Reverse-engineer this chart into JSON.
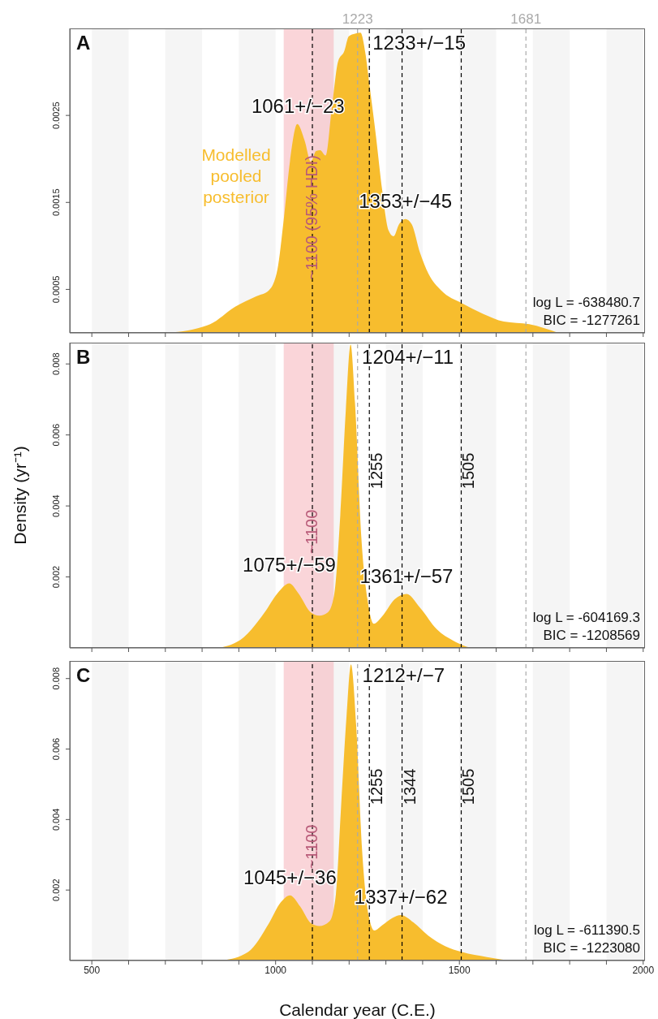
{
  "chart_data": [
    {
      "type": "area",
      "title": "A",
      "xlim": [
        440,
        2005
      ],
      "ylim": [
        0,
        0.0035
      ],
      "yticks": [
        0.0005,
        0.0015,
        0.0025
      ],
      "tick_labels": "y",
      "xticks": [
        500,
        {
          "value": 600,
          "label": null
        },
        {
          "value": 700,
          "label": null
        },
        {
          "value": 800,
          "label": null
        },
        {
          "value": 900,
          "label": null
        },
        1000,
        {
          "value": 1100,
          "label": null
        },
        {
          "value": 1200,
          "label": null
        },
        {
          "value": 1300,
          "label": null
        },
        {
          "value": 1400,
          "label": null
        },
        1500,
        {
          "value": 1600,
          "label": null
        },
        {
          "value": 1700,
          "label": null
        },
        {
          "value": 1800,
          "label": null
        },
        {
          "value": 1900,
          "label": null
        },
        2000
      ],
      "x": [
        708,
        822,
        890,
        947,
        982,
        1005,
        1022,
        1039,
        1059,
        1079,
        1096,
        1110,
        1121,
        1136,
        1153,
        1170,
        1187,
        1199,
        1216,
        1231,
        1244,
        1256,
        1273,
        1290,
        1307,
        1321,
        1336,
        1353,
        1370,
        1393,
        1416,
        1450,
        1507,
        1564,
        1621,
        1690,
        1769
      ],
      "series": [
        {
          "name": "Modelled pooled posterior",
          "color": "#f7bd2e",
          "values": [
            0,
            0.0001,
            0.0003,
            0.00042,
            0.00049,
            0.00073,
            0.0013,
            0.00197,
            0.0024,
            0.00221,
            0.00197,
            0.00209,
            0.0021,
            0.00204,
            0.00259,
            0.00312,
            0.00324,
            0.00341,
            0.00344,
            0.00345,
            0.00322,
            0.00283,
            0.00226,
            0.00164,
            0.00118,
            0.00111,
            0.00125,
            0.00131,
            0.00125,
            0.00092,
            0.00068,
            0.00049,
            0.00034,
            0.00022,
            0.00013,
            0.0001,
            0
          ]
        }
      ],
      "bands": [
        {
          "axis": "x",
          "from": 500,
          "to": 600,
          "color": "#ececec"
        },
        {
          "axis": "x",
          "from": 700,
          "to": 800,
          "color": "#ececec"
        },
        {
          "axis": "x",
          "from": 900,
          "to": 1000,
          "color": "#ececec"
        },
        {
          "axis": "x",
          "from": 1100,
          "to": 1200,
          "color": "#ececec"
        },
        {
          "axis": "x",
          "from": 1300,
          "to": 1400,
          "color": "#ececec"
        },
        {
          "axis": "x",
          "from": 1500,
          "to": 1600,
          "color": "#ececec"
        },
        {
          "axis": "x",
          "from": 1700,
          "to": 1800,
          "color": "#ececec"
        },
        {
          "axis": "x",
          "from": 1900,
          "to": 2000,
          "color": "#ececec"
        },
        {
          "axis": "x",
          "from": 1022,
          "to": 1158,
          "label": "~1100 (95% HDI)",
          "color": "#f6b3ba"
        }
      ],
      "ref_lines": [
        {
          "axis": "x",
          "value": 1100,
          "color": "#000000",
          "line_style": "dashed"
        },
        {
          "axis": "x",
          "value": 1255,
          "color": "#000000",
          "line_style": "dashed"
        },
        {
          "axis": "x",
          "value": 1344,
          "color": "#000000",
          "line_style": "dashed"
        },
        {
          "axis": "x",
          "value": 1505,
          "color": "#000000",
          "line_style": "dashed"
        },
        {
          "axis": "x",
          "value": 1223,
          "label": "1223",
          "color": "#aaaaaa",
          "line_style": "dashed"
        },
        {
          "axis": "x",
          "value": 1681,
          "label": "1681",
          "color": "#aaaaaa",
          "line_style": "dashed"
        }
      ],
      "annotations": [
        {
          "text": "1061+/−23",
          "x": 1061,
          "y": 0.0024
        },
        {
          "text": "1233+/−15",
          "x": 1233,
          "y": 0.00345
        },
        {
          "text": "1353+/−45",
          "x": 1353,
          "y": 0.00131
        },
        "log L = -638480.7",
        "BIC = -1277261"
      ]
    },
    {
      "type": "area",
      "title": "B",
      "ylabel": "Density (yr⁻¹)",
      "xlim": [
        440,
        2005
      ],
      "ylim": [
        0,
        0.0086
      ],
      "yticks": [
        0.002,
        0.004,
        0.006,
        0.008
      ],
      "tick_labels": "y",
      "xticks": [
        500,
        {
          "value": 600,
          "label": null
        },
        {
          "value": 700,
          "label": null
        },
        {
          "value": 800,
          "label": null
        },
        {
          "value": 900,
          "label": null
        },
        1000,
        {
          "value": 1100,
          "label": null
        },
        {
          "value": 1200,
          "label": null
        },
        {
          "value": 1300,
          "label": null
        },
        {
          "value": 1400,
          "label": null
        },
        1500,
        {
          "value": 1600,
          "label": null
        },
        {
          "value": 1700,
          "label": null
        },
        {
          "value": 1800,
          "label": null
        },
        {
          "value": 1900,
          "label": null
        },
        2000
      ],
      "x": [
        845,
        913,
        970,
        1005,
        1037,
        1062,
        1096,
        1119,
        1142,
        1159,
        1176,
        1191,
        1204,
        1216,
        1233,
        1250,
        1267,
        1290,
        1324,
        1356,
        1393,
        1438,
        1484,
        1541,
        1598
      ],
      "series": [
        {
          "color": "#f7bd2e",
          "values": [
            0,
            0.0003,
            0.001,
            0.00154,
            0.00182,
            0.00154,
            0.001,
            0.00091,
            0.001,
            0.00148,
            0.00374,
            0.0067,
            0.00855,
            0.0069,
            0.00315,
            0.00137,
            0.00068,
            0.00089,
            0.00137,
            0.00152,
            0.00113,
            0.00053,
            0.0002,
            0,
            0
          ]
        }
      ],
      "bands": [
        {
          "axis": "x",
          "from": 500,
          "to": 600,
          "color": "#ececec"
        },
        {
          "axis": "x",
          "from": 700,
          "to": 800,
          "color": "#ececec"
        },
        {
          "axis": "x",
          "from": 900,
          "to": 1000,
          "color": "#ececec"
        },
        {
          "axis": "x",
          "from": 1100,
          "to": 1200,
          "color": "#ececec"
        },
        {
          "axis": "x",
          "from": 1300,
          "to": 1400,
          "color": "#ececec"
        },
        {
          "axis": "x",
          "from": 1500,
          "to": 1600,
          "color": "#ececec"
        },
        {
          "axis": "x",
          "from": 1700,
          "to": 1800,
          "color": "#ececec"
        },
        {
          "axis": "x",
          "from": 1900,
          "to": 2000,
          "color": "#ececec"
        },
        {
          "axis": "x",
          "from": 1022,
          "to": 1158,
          "label": "~1100",
          "color": "#f6b3ba"
        }
      ],
      "ref_lines": [
        {
          "axis": "x",
          "value": 1100,
          "color": "#000000",
          "line_style": "dashed"
        },
        {
          "axis": "x",
          "value": 1255,
          "label": "1255",
          "color": "#000000",
          "line_style": "dashed"
        },
        {
          "axis": "x",
          "value": 1344,
          "color": "#000000",
          "line_style": "dashed"
        },
        {
          "axis": "x",
          "value": 1505,
          "label": "1505",
          "color": "#000000",
          "line_style": "dashed"
        },
        {
          "axis": "x",
          "value": 1223,
          "color": "#aaaaaa",
          "line_style": "dashed"
        },
        {
          "axis": "x",
          "value": 1681,
          "color": "#aaaaaa",
          "line_style": "dashed"
        }
      ],
      "annotations": [
        {
          "text": "1075+/−59",
          "x": 1037,
          "y": 0.00182
        },
        {
          "text": "1204+/−11",
          "x": 1204,
          "y": 0.00855
        },
        {
          "text": "1361+/−57",
          "x": 1356,
          "y": 0.00152
        },
        "log L = -604169.3",
        "BIC = -1208569"
      ]
    },
    {
      "type": "area",
      "title": "C",
      "xlabel": "Calendar year (C.E.)",
      "xlim": [
        440,
        2005
      ],
      "ylim": [
        0,
        0.0085
      ],
      "yticks": [
        0.002,
        0.004,
        0.006,
        0.008
      ],
      "xticks": [
        500,
        {
          "value": 600,
          "label": null
        },
        {
          "value": 700,
          "label": null
        },
        {
          "value": 800,
          "label": null
        },
        {
          "value": 900,
          "label": null
        },
        1000,
        {
          "value": 1100,
          "label": null
        },
        {
          "value": 1200,
          "label": null
        },
        {
          "value": 1300,
          "label": null
        },
        {
          "value": 1400,
          "label": null
        },
        1500,
        {
          "value": 1600,
          "label": null
        },
        {
          "value": 1700,
          "label": null
        },
        {
          "value": 1800,
          "label": null
        },
        {
          "value": 1900,
          "label": null
        },
        2000
      ],
      "x": [
        856,
        925,
        982,
        1014,
        1039,
        1067,
        1096,
        1119,
        1147,
        1164,
        1178,
        1193,
        1205,
        1219,
        1235,
        1253,
        1269,
        1290,
        1318,
        1341,
        1375,
        1415,
        1461,
        1507,
        1575,
        1655,
        1700
      ],
      "series": [
        {
          "color": "#f7bd2e",
          "values": [
            0,
            0.00024,
            0.00106,
            0.00165,
            0.00185,
            0.00153,
            0.00106,
            0.00098,
            0.00112,
            0.00188,
            0.00435,
            0.00694,
            0.0084,
            0.0067,
            0.00318,
            0.00129,
            0.00085,
            0.001,
            0.00121,
            0.00129,
            0.00108,
            0.00071,
            0.00041,
            0.00024,
            0.0001,
            0,
            0
          ]
        }
      ],
      "bands": [
        {
          "axis": "x",
          "from": 500,
          "to": 600,
          "color": "#ececec"
        },
        {
          "axis": "x",
          "from": 700,
          "to": 800,
          "color": "#ececec"
        },
        {
          "axis": "x",
          "from": 900,
          "to": 1000,
          "color": "#ececec"
        },
        {
          "axis": "x",
          "from": 1100,
          "to": 1200,
          "color": "#ececec"
        },
        {
          "axis": "x",
          "from": 1300,
          "to": 1400,
          "color": "#ececec"
        },
        {
          "axis": "x",
          "from": 1500,
          "to": 1600,
          "color": "#ececec"
        },
        {
          "axis": "x",
          "from": 1700,
          "to": 1800,
          "color": "#ececec"
        },
        {
          "axis": "x",
          "from": 1900,
          "to": 2000,
          "color": "#ececec"
        },
        {
          "axis": "x",
          "from": 1022,
          "to": 1158,
          "label": "~1100",
          "color": "#f6b3ba"
        }
      ],
      "ref_lines": [
        {
          "axis": "x",
          "value": 1100,
          "color": "#000000",
          "line_style": "dashed"
        },
        {
          "axis": "x",
          "value": 1255,
          "label": "1255",
          "color": "#000000",
          "line_style": "dashed"
        },
        {
          "axis": "x",
          "value": 1344,
          "label": "1344",
          "color": "#000000",
          "line_style": "dashed"
        },
        {
          "axis": "x",
          "value": 1505,
          "label": "1505",
          "color": "#000000",
          "line_style": "dashed"
        },
        {
          "axis": "x",
          "value": 1223,
          "color": "#aaaaaa",
          "line_style": "dashed"
        },
        {
          "axis": "x",
          "value": 1681,
          "color": "#aaaaaa",
          "line_style": "dashed"
        }
      ],
      "annotations": [
        {
          "text": "1045+/−36",
          "x": 1039,
          "y": 0.00185
        },
        {
          "text": "1212+/−7",
          "x": 1205,
          "y": 0.0084
        },
        {
          "text": "1337+/−62",
          "x": 1341,
          "y": 0.00129
        },
        "log L = -611390.5",
        "BIC = -1223080"
      ]
    }
  ]
}
